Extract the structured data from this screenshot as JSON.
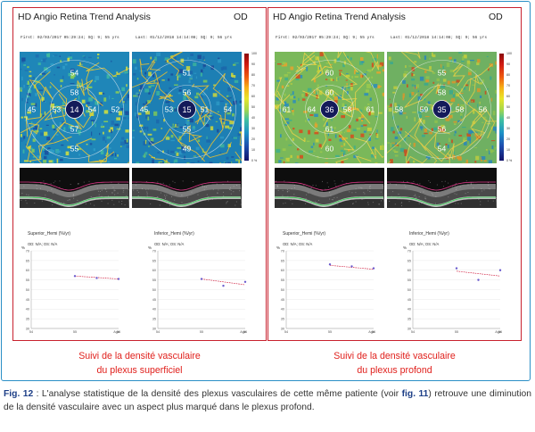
{
  "panels": [
    {
      "id": "left",
      "title": "HD Angio Retina Trend Analysis",
      "eye": "OD",
      "first_date": "First: 02/03/2017 05:29:24; SQ: 9; 55 yrs",
      "last_date": "Last: 01/12/2018 14:14:08; SQ: 9; 56 yrs",
      "scans": [
        {
          "center": "14",
          "values": [
            "54",
            "58",
            "45",
            "53",
            "54",
            "52",
            "57",
            "55"
          ],
          "palette": "superficial-first"
        },
        {
          "center": "15",
          "values": [
            "51",
            "56",
            "45",
            "53",
            "51",
            "54",
            "55",
            "49"
          ],
          "palette": "superficial-last"
        }
      ],
      "colorbar_labels": [
        "100",
        "90",
        "80",
        "70",
        "60",
        "50",
        "40",
        "30",
        "20",
        "10",
        "0 %"
      ],
      "charts": [
        {
          "title": "Superior_Hemi (%/yr)",
          "subtitle": "OD: N/A; OS: N/A"
        },
        {
          "title": "Inferior_Hemi (%/yr)",
          "subtitle": "OD: N/A; OS: N/A"
        }
      ],
      "caption_lines": [
        "Suivi de la densité vasculaire",
        "du plexus superficiel"
      ]
    },
    {
      "id": "right",
      "title": "HD Angio Retina Trend Analysis",
      "eye": "OD",
      "first_date": "First: 02/03/2017 05:29:24; SQ: 9; 55 yrs",
      "last_date": "Last: 01/12/2018 14:14:08; SQ: 9; 56 yrs",
      "scans": [
        {
          "center": "36",
          "values": [
            "60",
            "60",
            "61",
            "64",
            "58",
            "61",
            "61",
            "60"
          ],
          "palette": "deep-first"
        },
        {
          "center": "35",
          "values": [
            "55",
            "58",
            "58",
            "59",
            "58",
            "56",
            "56",
            "54"
          ],
          "palette": "deep-last"
        }
      ],
      "colorbar_labels": [
        "100",
        "90",
        "80",
        "70",
        "60",
        "50",
        "40",
        "30",
        "20",
        "10",
        "0 %"
      ],
      "charts": [
        {
          "title": "Superior_Hemi (%/yr)",
          "subtitle": "OD: N/A; OS: N/A"
        },
        {
          "title": "Inferior_Hemi (%/yr)",
          "subtitle": "OD: N/A; OS: N/A"
        }
      ],
      "caption_lines": [
        "Suivi de la densité vasculaire",
        "du plexus profond"
      ]
    }
  ],
  "chart_axes": {
    "y_unit": "%",
    "y_ticks": [
      "70",
      "65",
      "60",
      "55",
      "50",
      "45",
      "40",
      "35",
      "30"
    ],
    "x_ticks": [
      "54",
      "55",
      "56"
    ],
    "x_label": "Age"
  },
  "chart_data": [
    {
      "panel": "superficial",
      "name": "Superior_Hemi",
      "type": "scatter",
      "x": [
        55,
        55.5,
        56
      ],
      "y": [
        57,
        56,
        55.5
      ],
      "trend": [
        57,
        55.5
      ]
    },
    {
      "panel": "superficial",
      "name": "Inferior_Hemi",
      "type": "scatter",
      "x": [
        55,
        55.5,
        56
      ],
      "y": [
        55.5,
        52,
        54
      ],
      "trend": [
        55.5,
        52.5
      ]
    },
    {
      "panel": "deep",
      "name": "Superior_Hemi",
      "type": "scatter",
      "x": [
        55,
        55.5,
        56
      ],
      "y": [
        63,
        62,
        61
      ],
      "trend": [
        62.5,
        60.5
      ]
    },
    {
      "panel": "deep",
      "name": "Inferior_Hemi",
      "type": "scatter",
      "x": [
        55,
        55.5,
        56
      ],
      "y": [
        61,
        55,
        60
      ],
      "trend": [
        59.5,
        57
      ]
    }
  ],
  "figure_caption": {
    "label": "Fig. 12",
    "text_before": " : L'analyse statistique de la densité des plexus vasculaires de cette même patiente (voir ",
    "ref": "fig. 11",
    "text_after": ") retrouve une diminution de la densité vasculaire avec un aspect plus marqué dans le plexus profond."
  },
  "colors": {
    "frame": "#2a8fc6",
    "panel_border": "#c8212e",
    "caption_red": "#e0201c",
    "fig_label": "#1d3f87",
    "chart_point": "#6a5acd",
    "chart_trend": "#d02040"
  }
}
